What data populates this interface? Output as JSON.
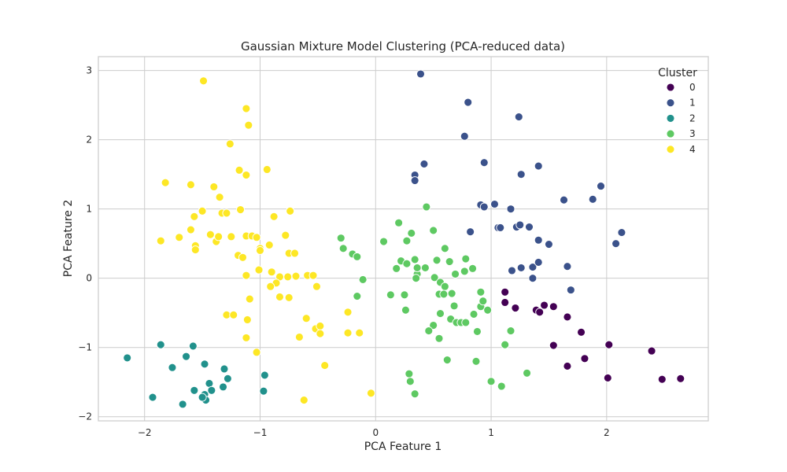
{
  "chart_data": {
    "type": "scatter",
    "title": "Gaussian Mixture Model Clustering (PCA-reduced data)",
    "xlabel": "PCA Feature 1",
    "ylabel": "PCA Feature 2",
    "xlim": [
      -2.4,
      2.88
    ],
    "ylim": [
      -2.06,
      3.2
    ],
    "xticks": [
      -2,
      -1,
      0,
      1,
      2
    ],
    "yticks": [
      -2,
      -1,
      0,
      1,
      2,
      3
    ],
    "xtick_labels": [
      "−2",
      "−1",
      "0",
      "1",
      "2"
    ],
    "ytick_labels": [
      "−2",
      "−1",
      "0",
      "1",
      "2",
      "3"
    ],
    "grid": true,
    "legend": {
      "title": "Cluster",
      "position": "top-right"
    },
    "series": [
      {
        "name": "0",
        "color": "#440154",
        "points": [
          [
            1.12,
            -0.2
          ],
          [
            1.12,
            -0.35
          ],
          [
            1.21,
            -0.43
          ],
          [
            1.39,
            -0.46
          ],
          [
            1.42,
            -0.49
          ],
          [
            1.46,
            -0.39
          ],
          [
            1.54,
            -0.41
          ],
          [
            1.54,
            -0.97
          ],
          [
            1.66,
            -0.56
          ],
          [
            1.66,
            -1.27
          ],
          [
            1.78,
            -0.78
          ],
          [
            1.81,
            -1.16
          ],
          [
            2.02,
            -0.96
          ],
          [
            2.01,
            -1.44
          ],
          [
            2.39,
            -1.05
          ],
          [
            2.48,
            -1.46
          ],
          [
            2.64,
            -1.45
          ]
        ]
      },
      {
        "name": "1",
        "color": "#3b528b",
        "points": [
          [
            0.39,
            2.95
          ],
          [
            0.8,
            2.54
          ],
          [
            1.24,
            2.33
          ],
          [
            0.77,
            2.05
          ],
          [
            0.42,
            1.65
          ],
          [
            0.94,
            1.67
          ],
          [
            0.34,
            1.49
          ],
          [
            0.34,
            1.41
          ],
          [
            1.41,
            1.62
          ],
          [
            1.26,
            1.5
          ],
          [
            1.95,
            1.33
          ],
          [
            1.63,
            1.13
          ],
          [
            1.88,
            1.14
          ],
          [
            0.91,
            1.06
          ],
          [
            0.94,
            1.03
          ],
          [
            1.03,
            1.07
          ],
          [
            1.17,
            1.0
          ],
          [
            0.82,
            0.67
          ],
          [
            1.06,
            0.73
          ],
          [
            1.08,
            0.73
          ],
          [
            1.22,
            0.74
          ],
          [
            1.25,
            0.77
          ],
          [
            1.33,
            0.74
          ],
          [
            1.41,
            0.55
          ],
          [
            1.5,
            0.49
          ],
          [
            2.08,
            0.5
          ],
          [
            2.13,
            0.66
          ],
          [
            1.26,
            0.15
          ],
          [
            1.18,
            0.11
          ],
          [
            1.36,
            0.16
          ],
          [
            1.41,
            0.23
          ],
          [
            1.36,
            0.0
          ],
          [
            1.66,
            0.17
          ],
          [
            1.69,
            -0.17
          ]
        ]
      },
      {
        "name": "2",
        "color": "#21918c",
        "points": [
          [
            -2.15,
            -1.15
          ],
          [
            -1.86,
            -0.96
          ],
          [
            -1.64,
            -1.13
          ],
          [
            -1.76,
            -1.29
          ],
          [
            -1.58,
            -0.98
          ],
          [
            -1.48,
            -1.24
          ],
          [
            -1.31,
            -1.31
          ],
          [
            -1.28,
            -1.45
          ],
          [
            -1.93,
            -1.72
          ],
          [
            -1.67,
            -1.82
          ],
          [
            -1.57,
            -1.62
          ],
          [
            -1.44,
            -1.52
          ],
          [
            -1.42,
            -1.62
          ],
          [
            -1.32,
            -1.57
          ],
          [
            -1.48,
            -1.68
          ],
          [
            -1.47,
            -1.76
          ],
          [
            -1.5,
            -1.72
          ],
          [
            -0.96,
            -1.4
          ],
          [
            -0.97,
            -1.63
          ]
        ]
      },
      {
        "name": "3",
        "color": "#5ec962",
        "points": [
          [
            -0.3,
            0.58
          ],
          [
            -0.28,
            0.43
          ],
          [
            -0.2,
            0.35
          ],
          [
            -0.16,
            0.31
          ],
          [
            -0.11,
            -0.02
          ],
          [
            -0.16,
            -0.26
          ],
          [
            0.07,
            0.53
          ],
          [
            0.2,
            0.8
          ],
          [
            0.27,
            0.54
          ],
          [
            0.31,
            0.65
          ],
          [
            0.44,
            1.03
          ],
          [
            0.5,
            0.69
          ],
          [
            0.18,
            0.14
          ],
          [
            0.22,
            0.25
          ],
          [
            0.27,
            0.21
          ],
          [
            0.34,
            0.27
          ],
          [
            0.36,
            0.06
          ],
          [
            0.35,
            0.0
          ],
          [
            0.25,
            -0.24
          ],
          [
            0.13,
            -0.24
          ],
          [
            0.26,
            -0.46
          ],
          [
            0.36,
            0.15
          ],
          [
            0.43,
            0.15
          ],
          [
            0.53,
            0.26
          ],
          [
            0.6,
            0.43
          ],
          [
            0.64,
            0.24
          ],
          [
            0.51,
            0.01
          ],
          [
            0.56,
            -0.06
          ],
          [
            0.6,
            -0.12
          ],
          [
            0.69,
            0.06
          ],
          [
            0.77,
            0.1
          ],
          [
            0.78,
            0.28
          ],
          [
            0.84,
            0.14
          ],
          [
            0.55,
            -0.23
          ],
          [
            0.59,
            -0.23
          ],
          [
            0.66,
            -0.22
          ],
          [
            0.68,
            -0.4
          ],
          [
            0.56,
            -0.51
          ],
          [
            0.5,
            -0.68
          ],
          [
            0.46,
            -0.76
          ],
          [
            0.55,
            -0.87
          ],
          [
            0.65,
            -0.59
          ],
          [
            0.7,
            -0.64
          ],
          [
            0.74,
            -0.64
          ],
          [
            0.78,
            -0.64
          ],
          [
            0.85,
            -0.52
          ],
          [
            0.91,
            -0.41
          ],
          [
            0.97,
            -0.46
          ],
          [
            0.93,
            -0.33
          ],
          [
            0.91,
            -0.2
          ],
          [
            0.88,
            -0.77
          ],
          [
            0.62,
            -1.18
          ],
          [
            0.87,
            -1.2
          ],
          [
            1.12,
            -0.96
          ],
          [
            1.17,
            -0.76
          ],
          [
            1.0,
            -1.49
          ],
          [
            1.09,
            -1.56
          ],
          [
            1.31,
            -1.37
          ],
          [
            0.29,
            -1.38
          ],
          [
            0.3,
            -1.49
          ],
          [
            0.34,
            -1.67
          ]
        ]
      },
      {
        "name": "4",
        "color": "#fde725",
        "points": [
          [
            -1.49,
            2.85
          ],
          [
            -1.12,
            2.45
          ],
          [
            -1.1,
            2.21
          ],
          [
            -1.26,
            1.94
          ],
          [
            -1.18,
            1.56
          ],
          [
            -0.94,
            1.57
          ],
          [
            -1.12,
            1.49
          ],
          [
            -1.82,
            1.38
          ],
          [
            -1.6,
            1.35
          ],
          [
            -1.4,
            1.32
          ],
          [
            -1.35,
            1.17
          ],
          [
            -1.57,
            0.89
          ],
          [
            -1.5,
            0.97
          ],
          [
            -1.33,
            0.94
          ],
          [
            -1.29,
            0.94
          ],
          [
            -1.17,
            0.99
          ],
          [
            -0.88,
            0.89
          ],
          [
            -0.74,
            0.97
          ],
          [
            -1.86,
            0.54
          ],
          [
            -1.7,
            0.59
          ],
          [
            -1.6,
            0.7
          ],
          [
            -1.56,
            0.47
          ],
          [
            -1.56,
            0.41
          ],
          [
            -1.43,
            0.63
          ],
          [
            -1.38,
            0.53
          ],
          [
            -1.36,
            0.6
          ],
          [
            -1.25,
            0.6
          ],
          [
            -1.12,
            0.61
          ],
          [
            -1.07,
            0.61
          ],
          [
            -1.03,
            0.59
          ],
          [
            -1.0,
            0.43
          ],
          [
            -1.0,
            0.4
          ],
          [
            -0.92,
            0.48
          ],
          [
            -0.78,
            0.62
          ],
          [
            -0.75,
            0.36
          ],
          [
            -0.7,
            0.36
          ],
          [
            -1.19,
            0.33
          ],
          [
            -1.15,
            0.3
          ],
          [
            -1.12,
            0.04
          ],
          [
            -1.01,
            0.12
          ],
          [
            -0.9,
            0.09
          ],
          [
            -0.83,
            0.02
          ],
          [
            -0.76,
            0.02
          ],
          [
            -0.69,
            0.03
          ],
          [
            -0.59,
            0.04
          ],
          [
            -0.54,
            0.04
          ],
          [
            -0.51,
            -0.12
          ],
          [
            -0.86,
            -0.07
          ],
          [
            -0.91,
            -0.12
          ],
          [
            -0.83,
            -0.27
          ],
          [
            -0.75,
            -0.28
          ],
          [
            -1.09,
            -0.3
          ],
          [
            -1.29,
            -0.53
          ],
          [
            -1.23,
            -0.53
          ],
          [
            -1.11,
            -0.6
          ],
          [
            -0.6,
            -0.58
          ],
          [
            -0.52,
            -0.73
          ],
          [
            -0.48,
            -0.69
          ],
          [
            -0.48,
            -0.8
          ],
          [
            -0.66,
            -0.85
          ],
          [
            -1.12,
            -0.86
          ],
          [
            -1.03,
            -1.07
          ],
          [
            -0.44,
            -1.26
          ],
          [
            -0.24,
            -0.49
          ],
          [
            -0.24,
            -0.79
          ],
          [
            -0.14,
            -0.79
          ],
          [
            -0.04,
            -1.66
          ],
          [
            -0.62,
            -1.76
          ]
        ]
      }
    ]
  }
}
